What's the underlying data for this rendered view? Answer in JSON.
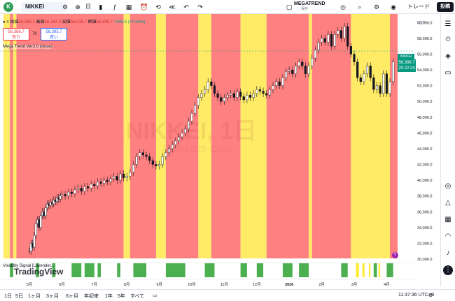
{
  "topbar": {
    "logo": "K",
    "symbol": "NIKKEI",
    "layout_name": "MEGATREND",
    "layout_saved": "保存",
    "trade_label": "トレード",
    "post_label": "投稿",
    "icons": [
      "chevron-down-icon",
      "plus-icon",
      "compare-icon",
      "interval-label",
      "candle-type-icon",
      "indicators-icon",
      "layout-icon",
      "alert-icon",
      "replay-icon",
      "undo-icon",
      "redo-icon",
      "fullscreen-icon",
      "settings-icon",
      "camera-icon"
    ],
    "interval": "日"
  },
  "legend": {
    "open_lbl": "始値",
    "open": "56,086.1",
    "high_lbl": "高値",
    "high": "56,784.3",
    "low_lbl": "安値",
    "low": "56,035.7",
    "close_lbl": "終値",
    "close": "56,389.7",
    "change": "+305.5 (+0.54%)",
    "sell_price": "56,388.7",
    "sell_label": "売り",
    "spread": "70",
    "buy_price": "56,395.7",
    "buy_label": "買い",
    "indicator": "Mega Trend Ver2.0 (close)",
    "volatility_label": "Volatility Signal [Lavender..."
  },
  "price_tag": {
    "symbol": "NIKKEI",
    "price": "56,389.7",
    "time": "20:22:24"
  },
  "watermark": {
    "line1": "NIKKEI, 1日",
    "line2": "Japan 225 Cash"
  },
  "branding": "TradingView",
  "bottombar": {
    "ranges": [
      "1日",
      "5日",
      "1ヶ月",
      "3ヶ月",
      "6ヶ月",
      "年初来",
      "1年",
      "5年",
      "すべて"
    ],
    "time": "11:37:36 UTC+9"
  },
  "colors": {
    "bear_bg": "#ff8080",
    "bull_bg": "#ffeb66",
    "signal_green": "#4caf50",
    "candle_up": "#131722",
    "candle_down": "#131722",
    "price_tag": "#089981"
  },
  "chart_data": {
    "type": "line",
    "yticks": [
      "60,000.0",
      "58,000.0",
      "56,000.0",
      "54,000.0",
      "52,000.0",
      "50,000.0",
      "48,000.0",
      "46,000.0",
      "44,000.0",
      "42,000.0",
      "40,000.0",
      "38,000.0",
      "36,000.0",
      "34,000.0",
      "32,000.0",
      "30,000.0"
    ],
    "ylim": [
      30000,
      61000
    ],
    "y_unit": "USD",
    "xticks": [
      "5月",
      "6月",
      "7月",
      "8月",
      "9月",
      "10月",
      "11月",
      "12月",
      "2026",
      "2月",
      "3月",
      "4月"
    ],
    "x_months": [
      0,
      1,
      2,
      3,
      4,
      5,
      6,
      7,
      8,
      9,
      10,
      11
    ],
    "series": [
      {
        "x": [
          0,
          0.05,
          0.1,
          0.15,
          0.2,
          0.25,
          0.3,
          0.35,
          0.4,
          0.45,
          0.5,
          0.55,
          0.6,
          0.65,
          0.7,
          0.75,
          0.8,
          0.85,
          0.9,
          0.95,
          1,
          1.1,
          1.2,
          1.3,
          1.4,
          1.5,
          1.6,
          1.7,
          1.8,
          1.9,
          2,
          2.1,
          2.2,
          2.3,
          2.4,
          2.5,
          2.6,
          2.7,
          2.8,
          2.9,
          3,
          3.1,
          3.2,
          3.3,
          3.4,
          3.5,
          3.6,
          3.7,
          3.8,
          3.9,
          4,
          4.1,
          4.2,
          4.3,
          4.4,
          4.5,
          4.6,
          4.7,
          4.8,
          4.9,
          5,
          5.1,
          5.2,
          5.3,
          5.4,
          5.5,
          5.6,
          5.7,
          5.8,
          5.9,
          6,
          6.1,
          6.2,
          6.3,
          6.4,
          6.5,
          6.6,
          6.7,
          6.8,
          6.9,
          7,
          7.1,
          7.2,
          7.3,
          7.4,
          7.5,
          7.6,
          7.7,
          7.8,
          7.9,
          8,
          8.1,
          8.2,
          8.3,
          8.4,
          8.5,
          8.6,
          8.7,
          8.8,
          8.9,
          9,
          9.1,
          9.2,
          9.3,
          9.4,
          9.5,
          9.6,
          9.7,
          9.8,
          9.9,
          10,
          10.1,
          10.2,
          10.3,
          10.4,
          10.5,
          10.6,
          10.7,
          10.8,
          10.9,
          11,
          11.1,
          11.2,
          11.3,
          11.4
        ],
        "y": [
          31000,
          32000,
          31500,
          33000,
          34500,
          35000,
          34000,
          35500,
          36000,
          35500,
          36500,
          37000,
          36800,
          37200,
          37000,
          37500,
          37300,
          37800,
          37600,
          38000,
          38200,
          38000,
          38500,
          38300,
          38800,
          39000,
          38600,
          39200,
          39000,
          39500,
          39300,
          39800,
          39600,
          40000,
          39800,
          40200,
          40500,
          40000,
          40800,
          40300,
          40500,
          41000,
          42000,
          43000,
          43500,
          43200,
          43000,
          42500,
          42000,
          41800,
          42000,
          43000,
          43500,
          44000,
          44500,
          45000,
          45500,
          46000,
          46500,
          47500,
          48500,
          49500,
          50500,
          51000,
          51500,
          52500,
          52000,
          51000,
          50500,
          50000,
          50500,
          50800,
          51000,
          50500,
          51200,
          50600,
          50200,
          50800,
          50500,
          51000,
          51500,
          51300,
          51000,
          50800,
          51500,
          52000,
          52500,
          52000,
          53000,
          53800,
          54000,
          53500,
          54500,
          55000,
          54500,
          53500,
          54500,
          55500,
          56500,
          57500,
          58000,
          57500,
          58500,
          57000,
          58500,
          59000,
          58000,
          59500,
          57000,
          56000,
          55000,
          53000,
          52500,
          53500,
          54500,
          53000,
          51500,
          52000,
          51000,
          53500,
          51000,
          52500,
          55000,
          56000,
          57200
        ]
      }
    ],
    "bg_zones": [
      {
        "x0": -0.8,
        "x1": -0.6,
        "trend": "bull"
      },
      {
        "x0": -0.6,
        "x1": -0.5,
        "trend": "bear"
      },
      {
        "x0": -0.5,
        "x1": -0.4,
        "trend": "bull"
      },
      {
        "x0": -0.4,
        "x1": 2.9,
        "trend": "bear"
      },
      {
        "x0": 2.9,
        "x1": 3.1,
        "trend": "bull"
      },
      {
        "x0": 3.1,
        "x1": 3.9,
        "trend": "bear"
      },
      {
        "x0": 3.9,
        "x1": 4.2,
        "trend": "bull"
      },
      {
        "x0": 4.2,
        "x1": 5.2,
        "trend": "bear"
      },
      {
        "x0": 5.2,
        "x1": 5.6,
        "trend": "bull"
      },
      {
        "x0": 5.6,
        "x1": 6.5,
        "trend": "bear"
      },
      {
        "x0": 6.5,
        "x1": 7.3,
        "trend": "bull"
      },
      {
        "x0": 7.3,
        "x1": 8.6,
        "trend": "bear"
      },
      {
        "x0": 8.6,
        "x1": 8.7,
        "trend": "bull"
      },
      {
        "x0": 8.7,
        "x1": 9.9,
        "trend": "bear"
      },
      {
        "x0": 9.9,
        "x1": 11.1,
        "trend": "bull"
      },
      {
        "x0": 11.1,
        "x1": 11.4,
        "trend": "bear"
      }
    ],
    "signals": [
      {
        "x0": -0.6,
        "x1": -0.5
      },
      {
        "x0": 0.2,
        "x1": 0.3
      },
      {
        "x0": 0.7,
        "x1": 0.8
      },
      {
        "x0": 1.3,
        "x1": 1.6
      },
      {
        "x0": 1.7,
        "x1": 2.0
      },
      {
        "x0": 2.1,
        "x1": 2.2
      },
      {
        "x0": 2.7,
        "x1": 2.8
      },
      {
        "x0": 3.2,
        "x1": 3.6
      },
      {
        "x0": 4.2,
        "x1": 4.8
      },
      {
        "x0": 5.4,
        "x1": 5.7
      },
      {
        "x0": 6.5,
        "x1": 6.7
      },
      {
        "x0": 7.0,
        "x1": 7.2
      },
      {
        "x0": 7.8,
        "x1": 8.1
      },
      {
        "x0": 8.3,
        "x1": 8.6
      },
      {
        "x0": 9.6,
        "x1": 9.8
      },
      {
        "x0": 10.6,
        "x1": 10.7
      },
      {
        "x0": 11.0,
        "x1": 11.2
      }
    ]
  }
}
